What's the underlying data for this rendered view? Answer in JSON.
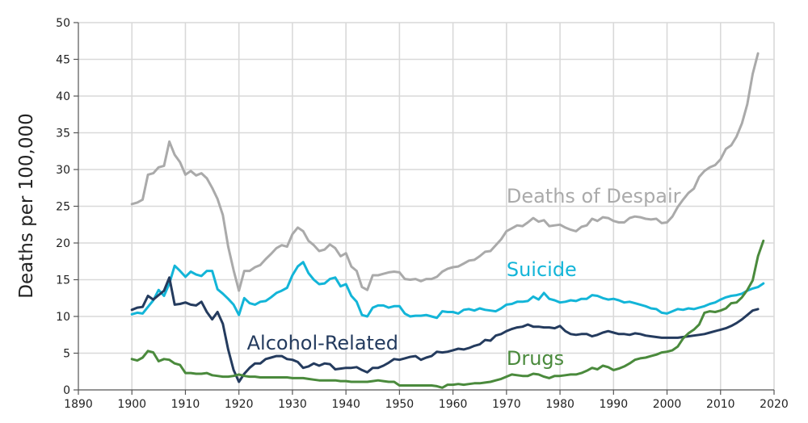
{
  "chart_data": {
    "type": "line",
    "title": "",
    "xlabel": "",
    "ylabel": "Deaths per 100,000",
    "xlim": [
      1890,
      2020
    ],
    "ylim": [
      0,
      50
    ],
    "xticks": [
      1890,
      1900,
      1910,
      1920,
      1930,
      1940,
      1950,
      1960,
      1970,
      1980,
      1990,
      2000,
      2010,
      2020
    ],
    "yticks": [
      0,
      5,
      10,
      15,
      20,
      25,
      30,
      35,
      40,
      45,
      50
    ],
    "grid": true,
    "legend": "inline labels",
    "x_start": 1900,
    "series": [
      {
        "name": "Deaths of Despair",
        "color": "#aaaaaa",
        "label_year": 1970,
        "label_value": 25.5,
        "values": [
          25.3,
          25.5,
          25.9,
          29.3,
          29.5,
          30.3,
          30.5,
          33.8,
          32.0,
          31.0,
          29.3,
          29.8,
          29.2,
          29.5,
          28.8,
          27.5,
          26.0,
          23.8,
          19.5,
          16.3,
          13.5,
          16.2,
          16.2,
          16.7,
          17.0,
          17.8,
          18.5,
          19.3,
          19.7,
          19.5,
          21.2,
          22.1,
          21.6,
          20.3,
          19.7,
          18.9,
          19.1,
          19.8,
          19.3,
          18.2,
          18.6,
          16.8,
          16.2,
          14.0,
          13.6,
          15.6,
          15.6,
          15.8,
          16.0,
          16.1,
          16.0,
          15.1,
          15.0,
          15.1,
          14.8,
          15.1,
          15.1,
          15.4,
          16.1,
          16.5,
          16.7,
          16.8,
          17.2,
          17.6,
          17.7,
          18.2,
          18.8,
          18.9,
          19.7,
          20.5,
          21.6,
          22.0,
          22.4,
          22.3,
          22.8,
          23.4,
          22.9,
          23.1,
          22.3,
          22.4,
          22.5,
          22.1,
          21.8,
          21.6,
          22.2,
          22.4,
          23.3,
          23.0,
          23.5,
          23.4,
          23.0,
          22.8,
          22.8,
          23.4,
          23.6,
          23.5,
          23.3,
          23.2,
          23.3,
          22.7,
          22.8,
          23.6,
          24.9,
          25.9,
          26.8,
          27.4,
          29.0,
          29.8,
          30.3,
          30.6,
          31.4,
          32.8,
          33.3,
          34.5,
          36.3,
          38.9,
          43.0,
          45.8
        ]
      },
      {
        "name": "Suicide",
        "color": "#13b5d8",
        "label_year": 1970,
        "label_value": 15.5,
        "values": [
          10.3,
          10.5,
          10.4,
          11.3,
          12.2,
          13.6,
          12.8,
          14.5,
          16.9,
          16.2,
          15.4,
          16.1,
          15.7,
          15.5,
          16.2,
          16.2,
          13.7,
          13.1,
          12.4,
          11.6,
          10.2,
          12.5,
          11.8,
          11.6,
          12.0,
          12.1,
          12.6,
          13.2,
          13.5,
          13.9,
          15.6,
          16.8,
          17.4,
          15.9,
          15.0,
          14.4,
          14.5,
          15.1,
          15.3,
          14.1,
          14.4,
          12.8,
          12.0,
          10.2,
          10.0,
          11.2,
          11.5,
          11.5,
          11.2,
          11.4,
          11.4,
          10.4,
          10.0,
          10.1,
          10.1,
          10.2,
          10.0,
          9.8,
          10.7,
          10.6,
          10.6,
          10.4,
          10.9,
          11.0,
          10.8,
          11.1,
          10.9,
          10.8,
          10.7,
          11.1,
          11.6,
          11.7,
          12.0,
          12.0,
          12.1,
          12.7,
          12.3,
          13.2,
          12.4,
          12.2,
          11.9,
          12.0,
          12.2,
          12.1,
          12.4,
          12.4,
          12.9,
          12.8,
          12.5,
          12.3,
          12.4,
          12.2,
          11.9,
          12.0,
          11.8,
          11.6,
          11.4,
          11.1,
          11.0,
          10.5,
          10.4,
          10.7,
          11.0,
          10.9,
          11.1,
          11.0,
          11.2,
          11.4,
          11.7,
          11.9,
          12.3,
          12.6,
          12.8,
          12.9,
          13.1,
          13.5,
          13.8,
          14.0,
          14.5
        ]
      },
      {
        "name": "Alcohol-Related",
        "color": "#243b5e",
        "label_year": 1921.5,
        "label_value": 5.5,
        "values": [
          10.9,
          11.2,
          11.3,
          12.8,
          12.3,
          12.9,
          13.5,
          15.3,
          11.6,
          11.7,
          11.9,
          11.6,
          11.5,
          12.0,
          10.6,
          9.6,
          10.6,
          9.0,
          5.5,
          2.7,
          1.1,
          2.2,
          3.0,
          3.6,
          3.6,
          4.2,
          4.4,
          4.6,
          4.6,
          4.2,
          4.1,
          3.8,
          3.0,
          3.2,
          3.6,
          3.3,
          3.6,
          3.5,
          2.8,
          2.9,
          3.0,
          3.0,
          3.1,
          2.7,
          2.4,
          3.0,
          3.0,
          3.3,
          3.7,
          4.2,
          4.1,
          4.3,
          4.5,
          4.6,
          4.1,
          4.4,
          4.6,
          5.2,
          5.1,
          5.2,
          5.4,
          5.6,
          5.5,
          5.7,
          6.0,
          6.2,
          6.8,
          6.7,
          7.4,
          7.6,
          8.0,
          8.3,
          8.5,
          8.6,
          8.9,
          8.6,
          8.6,
          8.5,
          8.5,
          8.4,
          8.7,
          8.0,
          7.6,
          7.5,
          7.6,
          7.6,
          7.3,
          7.5,
          7.8,
          8.0,
          7.8,
          7.6,
          7.6,
          7.5,
          7.7,
          7.6,
          7.4,
          7.3,
          7.2,
          7.1,
          7.1,
          7.1,
          7.1,
          7.2,
          7.3,
          7.4,
          7.5,
          7.6,
          7.8,
          8.0,
          8.2,
          8.4,
          8.7,
          9.1,
          9.6,
          10.2,
          10.8,
          11.0
        ]
      },
      {
        "name": "Drugs",
        "color": "#4a8a3c",
        "label_year": 1970,
        "label_value": 3.4,
        "values": [
          4.2,
          4.0,
          4.4,
          5.3,
          5.1,
          3.9,
          4.2,
          4.1,
          3.6,
          3.4,
          2.3,
          2.3,
          2.2,
          2.2,
          2.3,
          2.0,
          1.9,
          1.8,
          1.8,
          1.9,
          2.1,
          1.9,
          1.8,
          1.8,
          1.7,
          1.7,
          1.7,
          1.7,
          1.7,
          1.7,
          1.6,
          1.6,
          1.6,
          1.5,
          1.4,
          1.3,
          1.3,
          1.3,
          1.3,
          1.2,
          1.2,
          1.1,
          1.1,
          1.1,
          1.1,
          1.2,
          1.3,
          1.2,
          1.1,
          1.1,
          0.6,
          0.6,
          0.6,
          0.6,
          0.6,
          0.6,
          0.6,
          0.5,
          0.3,
          0.7,
          0.7,
          0.8,
          0.7,
          0.8,
          0.9,
          0.9,
          1.0,
          1.1,
          1.3,
          1.5,
          1.8,
          2.1,
          2.0,
          1.9,
          1.9,
          2.2,
          2.1,
          1.8,
          1.6,
          1.9,
          1.9,
          2.0,
          2.1,
          2.1,
          2.3,
          2.6,
          3.0,
          2.8,
          3.3,
          3.1,
          2.7,
          2.9,
          3.2,
          3.6,
          4.1,
          4.3,
          4.4,
          4.6,
          4.8,
          5.1,
          5.2,
          5.4,
          5.9,
          7.0,
          7.7,
          8.2,
          8.9,
          10.5,
          10.7,
          10.6,
          10.8,
          11.1,
          11.8,
          11.9,
          12.6,
          13.6,
          14.9,
          18.2,
          20.3
        ]
      }
    ]
  }
}
